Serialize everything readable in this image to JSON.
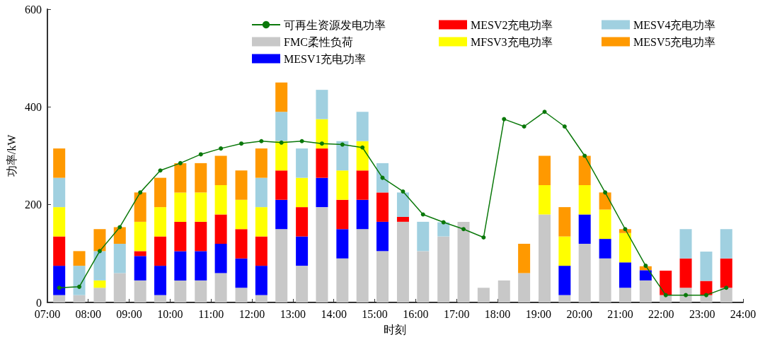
{
  "chart_data": {
    "type": "bar",
    "stacked": true,
    "xlabel": "时刻",
    "ylabel": "功率/kW",
    "x": [
      7.29,
      7.78,
      8.28,
      8.77,
      9.27,
      9.76,
      10.25,
      10.75,
      11.24,
      11.74,
      12.23,
      12.72,
      13.22,
      13.71,
      14.21,
      14.7,
      15.19,
      15.69,
      16.18,
      16.68,
      17.17,
      17.66,
      18.16,
      18.65,
      19.15,
      19.64,
      20.13,
      20.63,
      21.12,
      21.62,
      22.11,
      22.6,
      23.1,
      23.59
    ],
    "xlim": [
      7,
      24
    ],
    "xticks": [
      {
        "value": 7,
        "label": "07:00"
      },
      {
        "value": 8,
        "label": "08:00"
      },
      {
        "value": 9,
        "label": "09:00"
      },
      {
        "value": 10,
        "label": "10:00"
      },
      {
        "value": 11,
        "label": "11:00"
      },
      {
        "value": 12,
        "label": "12:00"
      },
      {
        "value": 13,
        "label": "13:00"
      },
      {
        "value": 14,
        "label": "14:00"
      },
      {
        "value": 15,
        "label": "15:00"
      },
      {
        "value": 16,
        "label": "16:00"
      },
      {
        "value": 17,
        "label": "17:00"
      },
      {
        "value": 18,
        "label": "18:00"
      },
      {
        "value": 19,
        "label": "19:00"
      },
      {
        "value": 20,
        "label": "20:00"
      },
      {
        "value": 21,
        "label": "21:00"
      },
      {
        "value": 22,
        "label": "22:00"
      },
      {
        "value": 23,
        "label": "23:00"
      },
      {
        "value": 24,
        "label": "24:00"
      }
    ],
    "ylim": [
      0,
      600
    ],
    "yticks": [
      0,
      200,
      400,
      600
    ],
    "grid": false,
    "legend": "top right",
    "series": [
      {
        "name": "可再生资源发电功率",
        "type": "line",
        "color": "#0a780a",
        "marker": "circle",
        "line_style": "solid",
        "values": [
          30,
          32,
          105,
          154,
          225,
          270,
          285,
          303,
          315,
          325,
          330,
          327,
          330,
          325,
          323,
          317,
          255,
          227,
          180,
          164,
          150,
          133,
          375,
          360,
          390,
          360,
          300,
          225,
          150,
          75,
          15,
          15,
          15,
          30
        ]
      },
      {
        "name": "FMC柔性负荷",
        "color": "#c8c8c8",
        "values": [
          15,
          15,
          30,
          60,
          45,
          15,
          45,
          45,
          60,
          30,
          15,
          150,
          75,
          195,
          90,
          150,
          105,
          165,
          105,
          135,
          165,
          30,
          45,
          60,
          180,
          15,
          120,
          90,
          30,
          45,
          15,
          30,
          15,
          30
        ]
      },
      {
        "name": "MESV1充电功率",
        "color": "#0000ff",
        "values": [
          60,
          null,
          null,
          null,
          50,
          60,
          60,
          60,
          60,
          60,
          60,
          60,
          60,
          60,
          60,
          60,
          60,
          null,
          null,
          null,
          null,
          null,
          null,
          null,
          null,
          60,
          60,
          40,
          52,
          21,
          null,
          null,
          null,
          null
        ]
      },
      {
        "name": "MESV2充电功率",
        "color": "#ff0000",
        "values": [
          60,
          null,
          null,
          null,
          10,
          60,
          60,
          60,
          60,
          60,
          60,
          60,
          60,
          60,
          60,
          60,
          60,
          10,
          null,
          null,
          null,
          null,
          null,
          null,
          null,
          null,
          null,
          null,
          null,
          null,
          50,
          60,
          29,
          60
        ]
      },
      {
        "name": "MFSV3充电功率",
        "color": "#ffff00",
        "values": [
          60,
          null,
          15,
          null,
          60,
          60,
          60,
          60,
          60,
          60,
          60,
          60,
          60,
          60,
          60,
          60,
          null,
          null,
          null,
          null,
          null,
          null,
          null,
          null,
          60,
          60,
          60,
          60,
          60,
          null,
          null,
          null,
          null,
          null
        ]
      },
      {
        "name": "MESV4充电功率",
        "color": "#a0d0e0",
        "values": [
          60,
          60,
          60,
          60,
          null,
          null,
          null,
          null,
          null,
          null,
          60,
          60,
          60,
          60,
          60,
          60,
          60,
          50,
          60,
          29,
          null,
          null,
          null,
          null,
          null,
          null,
          null,
          null,
          null,
          null,
          null,
          60,
          60,
          60
        ]
      },
      {
        "name": "MESV5充电功率",
        "color": "#ff9900",
        "values": [
          60,
          30,
          45,
          34,
          60,
          60,
          60,
          60,
          60,
          60,
          60,
          60,
          null,
          null,
          null,
          null,
          null,
          null,
          null,
          null,
          null,
          null,
          null,
          60,
          60,
          60,
          60,
          35,
          8,
          8,
          null,
          null,
          null,
          null
        ]
      }
    ]
  }
}
